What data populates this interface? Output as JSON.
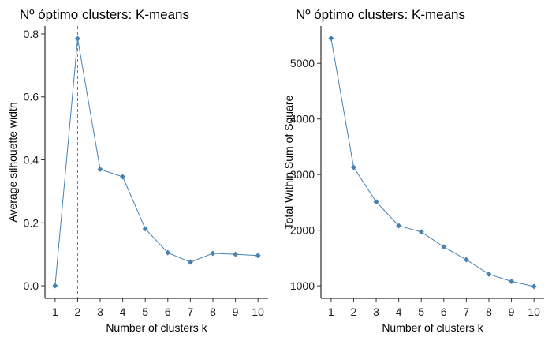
{
  "chart_data": [
    {
      "type": "line",
      "title": "Nº óptimo clusters: K-means",
      "xlabel": "Number of clusters k",
      "ylabel": "Average silhouette width",
      "x": [
        1,
        2,
        3,
        4,
        5,
        6,
        7,
        8,
        9,
        10
      ],
      "x_ticks": [
        "1",
        "2",
        "3",
        "4",
        "5",
        "6",
        "7",
        "8",
        "9",
        "10"
      ],
      "y": [
        0.0,
        0.785,
        0.37,
        0.346,
        0.181,
        0.105,
        0.075,
        0.103,
        0.1,
        0.096
      ],
      "y_ticks": [
        "0.0",
        "0.2",
        "0.4",
        "0.6",
        "0.8"
      ],
      "y_tick_values": [
        0.0,
        0.2,
        0.4,
        0.6,
        0.8
      ],
      "ylim": [
        -0.04,
        0.825
      ],
      "xlim": [
        0.55,
        10.45
      ],
      "vline_x": 2,
      "vline_style": "dashed",
      "grid": false,
      "color": "#4682b4"
    },
    {
      "type": "line",
      "title": "Nº óptimo clusters: K-means",
      "xlabel": "Number of clusters k",
      "ylabel": "Total Within Sum of Square",
      "x": [
        1,
        2,
        3,
        4,
        5,
        6,
        7,
        8,
        9,
        10
      ],
      "x_ticks": [
        "1",
        "2",
        "3",
        "4",
        "5",
        "6",
        "7",
        "8",
        "9",
        "10"
      ],
      "y": [
        5450,
        3130,
        2510,
        2080,
        1970,
        1700,
        1470,
        1210,
        1080,
        990
      ],
      "y_ticks": [
        "1000",
        "2000",
        "3000",
        "4000",
        "5000"
      ],
      "y_tick_values": [
        1000,
        2000,
        3000,
        4000,
        5000
      ],
      "ylim": [
        775,
        5670
      ],
      "xlim": [
        0.55,
        10.45
      ],
      "grid": false,
      "color": "#4682b4"
    }
  ]
}
